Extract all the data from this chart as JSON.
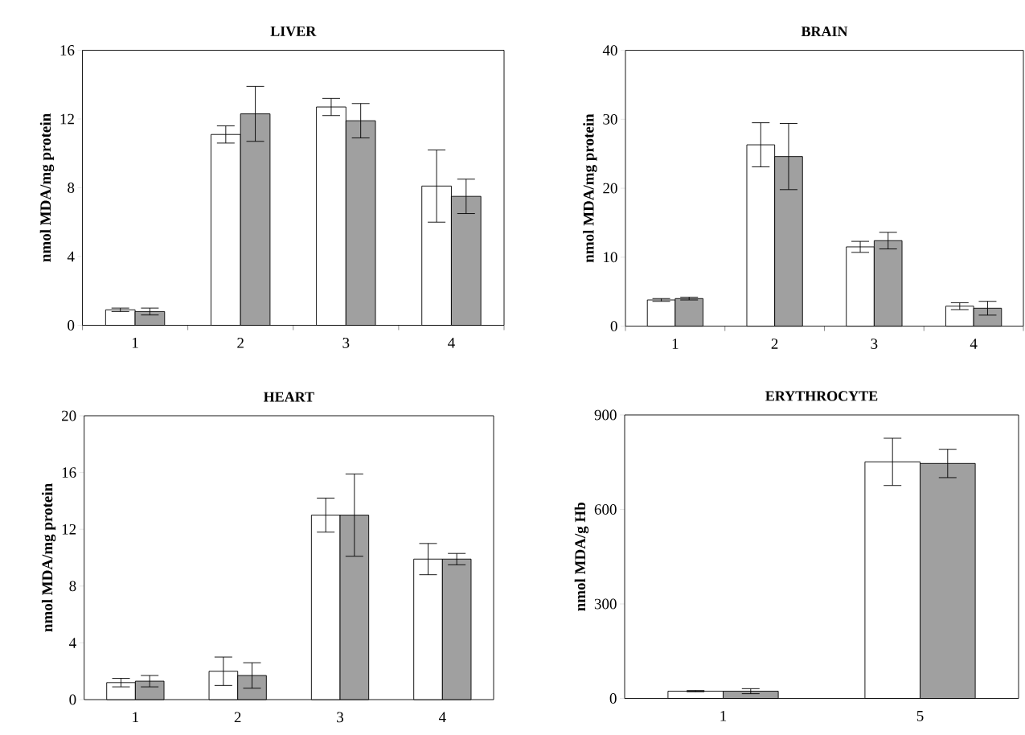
{
  "chart_data": [
    {
      "type": "bar",
      "title": "LIVER",
      "ylabel": "nmol MDA/mg protein",
      "categories": [
        "1",
        "2",
        "3",
        "4"
      ],
      "ylim": [
        0,
        16
      ],
      "yticks": [
        0,
        4,
        8,
        12,
        16
      ],
      "series": [
        {
          "color": "#ffffff",
          "values": [
            0.9,
            11.1,
            12.7,
            8.1
          ],
          "errors": [
            0.1,
            0.5,
            0.5,
            2.1
          ]
        },
        {
          "color": "#a0a0a0",
          "values": [
            0.8,
            12.3,
            11.9,
            7.5
          ],
          "errors": [
            0.2,
            1.6,
            1.0,
            1.0
          ]
        }
      ]
    },
    {
      "type": "bar",
      "title": "BRAIN",
      "ylabel": "nmol MDA/mg protein",
      "categories": [
        "1",
        "2",
        "3",
        "4"
      ],
      "ylim": [
        0,
        40
      ],
      "yticks": [
        0,
        10,
        20,
        30,
        40
      ],
      "series": [
        {
          "color": "#ffffff",
          "values": [
            3.8,
            26.3,
            11.5,
            2.9
          ],
          "errors": [
            0.2,
            3.2,
            0.8,
            0.5
          ]
        },
        {
          "color": "#a0a0a0",
          "values": [
            4.0,
            24.6,
            12.4,
            2.6
          ],
          "errors": [
            0.2,
            4.8,
            1.2,
            1.0
          ]
        }
      ]
    },
    {
      "type": "bar",
      "title": "HEART",
      "ylabel": "nmol MDA/mg protein",
      "categories": [
        "1",
        "2",
        "3",
        "4"
      ],
      "ylim": [
        0,
        20
      ],
      "yticks": [
        0,
        4,
        8,
        12,
        16,
        20
      ],
      "series": [
        {
          "color": "#ffffff",
          "values": [
            1.2,
            2.0,
            13.0,
            9.9
          ],
          "errors": [
            0.3,
            1.0,
            1.2,
            1.1
          ]
        },
        {
          "color": "#a0a0a0",
          "values": [
            1.3,
            1.7,
            13.0,
            9.9
          ],
          "errors": [
            0.4,
            0.9,
            2.9,
            0.4
          ]
        }
      ]
    },
    {
      "type": "bar",
      "title": "ERYTHROCYTE",
      "ylabel": "nmol MDA/g Hb",
      "categories": [
        "1",
        "5"
      ],
      "ylim": [
        0,
        900
      ],
      "yticks": [
        0,
        300,
        600,
        900
      ],
      "series": [
        {
          "color": "#ffffff",
          "values": [
            23,
            751
          ],
          "errors": [
            2,
            75
          ]
        },
        {
          "color": "#a0a0a0",
          "values": [
            23,
            746
          ],
          "errors": [
            8,
            45
          ]
        }
      ]
    }
  ]
}
